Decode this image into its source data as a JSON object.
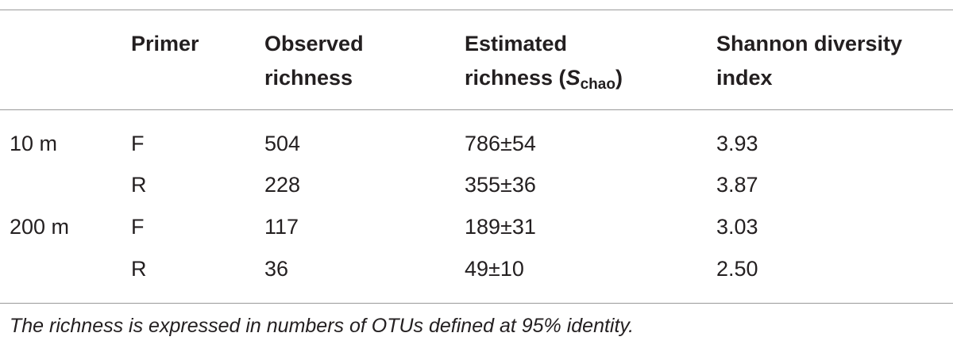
{
  "header": {
    "primer": "Primer",
    "observed": [
      "Observed",
      "richness"
    ],
    "estimated": {
      "line1": "Estimated",
      "line2": "richness (",
      "symbol": "S",
      "subscript": "chao",
      "close": ")"
    },
    "shannon": [
      "Shannon diversity",
      "index"
    ]
  },
  "rows": [
    [
      "10 m",
      "F",
      "504",
      "786±54",
      "3.93"
    ],
    [
      null,
      "R",
      "228",
      "355±36",
      "3.87"
    ],
    [
      "200 m",
      "F",
      "117",
      "189±31",
      "3.03"
    ],
    [
      null,
      "R",
      "36",
      "49±10",
      "2.50"
    ]
  ],
  "footnote": "The richness is expressed in numbers of OTUs defined at 95% identity."
}
